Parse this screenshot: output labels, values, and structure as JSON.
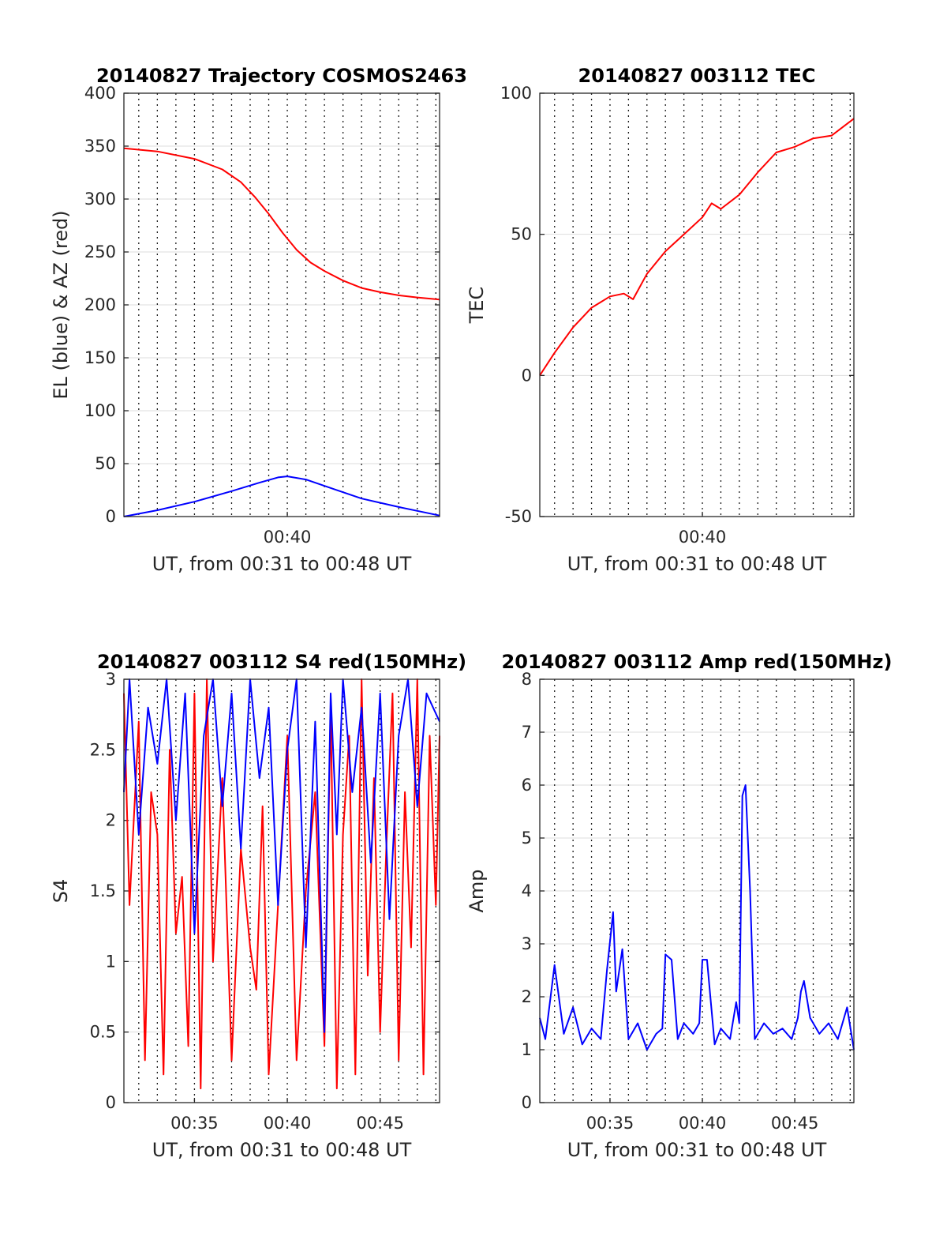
{
  "chart_data": [
    {
      "type": "line",
      "title": "20140827 Trajectory COSMOS2463",
      "xlabel": "UT, from 00:31 to 00:48 UT",
      "ylabel": "EL (blue) & AZ (red)",
      "xlim": [
        "00:31:12",
        "00:48:12"
      ],
      "ylim": [
        0,
        400
      ],
      "yticks": [
        0,
        50,
        100,
        150,
        200,
        250,
        300,
        350,
        400
      ],
      "xtick_labels": [
        {
          "t": "00:40",
          "label": "00:40"
        }
      ],
      "grid": true,
      "series": [
        {
          "color": "#ff0000",
          "x": [
            "00:31:12",
            "00:33:00",
            "00:35:00",
            "00:36:30",
            "00:37:30",
            "00:38:15",
            "00:39:00",
            "00:39:45",
            "00:40:30",
            "00:41:15",
            "00:42:00",
            "00:43:00",
            "00:44:00",
            "00:45:00",
            "00:46:00",
            "00:47:00",
            "00:48:12"
          ],
          "y": [
            348,
            345,
            338,
            328,
            316,
            302,
            286,
            268,
            252,
            240,
            232,
            223,
            216,
            212,
            209,
            207,
            205
          ]
        },
        {
          "color": "#0000ff",
          "x": [
            "00:31:12",
            "00:33:00",
            "00:35:00",
            "00:37:00",
            "00:38:30",
            "00:39:30",
            "00:40:00",
            "00:41:00",
            "00:42:30",
            "00:44:00",
            "00:46:00",
            "00:48:12"
          ],
          "y": [
            0,
            6,
            14,
            24,
            32,
            37,
            38,
            35,
            26,
            17,
            9,
            1
          ]
        }
      ]
    },
    {
      "type": "line",
      "title": "20140827 003112 TEC",
      "xlabel": "UT, from 00:31 to 00:48 UT",
      "ylabel": "TEC",
      "xlim": [
        "00:31:12",
        "00:48:12"
      ],
      "ylim": [
        -50,
        100
      ],
      "yticks": [
        -50,
        0,
        50,
        100
      ],
      "xtick_labels": [
        {
          "t": "00:40",
          "label": "00:40"
        }
      ],
      "grid": true,
      "series": [
        {
          "color": "#ff0000",
          "x": [
            "00:31:12",
            "00:32:00",
            "00:33:00",
            "00:34:00",
            "00:35:00",
            "00:35:45",
            "00:36:15",
            "00:37:00",
            "00:38:00",
            "00:39:00",
            "00:40:00",
            "00:40:30",
            "00:41:00",
            "00:42:00",
            "00:43:00",
            "00:44:00",
            "00:45:00",
            "00:46:00",
            "00:47:00",
            "00:48:12"
          ],
          "y": [
            0,
            8,
            17,
            24,
            28,
            29,
            27,
            36,
            44,
            50,
            56,
            61,
            59,
            64,
            72,
            79,
            81,
            84,
            85,
            91
          ]
        }
      ]
    },
    {
      "type": "line",
      "title": "20140827 003112 S4 red(150MHz)",
      "xlabel": "UT, from 00:31 to 00:48 UT",
      "ylabel": "S4",
      "xlim": [
        "00:31:12",
        "00:48:12"
      ],
      "ylim": [
        0,
        3
      ],
      "yticks": [
        0,
        0.5,
        1,
        1.5,
        2,
        2.5,
        3
      ],
      "xtick_labels": [
        {
          "t": "00:35",
          "label": "00:35"
        },
        {
          "t": "00:40",
          "label": "00:40"
        },
        {
          "t": "00:45",
          "label": "00:45"
        }
      ],
      "grid": true,
      "series": [
        {
          "color": "#ff0000",
          "x": [
            "00:31:12",
            "00:31:30",
            "00:32:00",
            "00:32:20",
            "00:32:40",
            "00:33:00",
            "00:33:20",
            "00:33:40",
            "00:34:00",
            "00:34:20",
            "00:34:40",
            "00:35:00",
            "00:35:20",
            "00:35:40",
            "00:36:00",
            "00:36:30",
            "00:37:00",
            "00:37:30",
            "00:38:00",
            "00:38:20",
            "00:38:40",
            "00:39:00",
            "00:39:30",
            "00:40:00",
            "00:40:30",
            "00:41:00",
            "00:41:30",
            "00:42:00",
            "00:42:20",
            "00:42:40",
            "00:43:00",
            "00:43:20",
            "00:43:40",
            "00:44:00",
            "00:44:20",
            "00:44:40",
            "00:45:00",
            "00:45:20",
            "00:45:40",
            "00:46:00",
            "00:46:20",
            "00:46:40",
            "00:47:00",
            "00:47:20",
            "00:47:40",
            "00:48:00",
            "00:48:12"
          ],
          "y": [
            2.9,
            1.4,
            2.7,
            0.3,
            2.2,
            1.9,
            0.2,
            2.5,
            1.2,
            1.6,
            0.4,
            2.9,
            0.1,
            3.0,
            1.0,
            2.3,
            0.3,
            1.8,
            1.1,
            0.8,
            2.1,
            0.2,
            1.4,
            2.6,
            0.3,
            1.5,
            2.2,
            0.4,
            2.8,
            0.1,
            1.9,
            2.6,
            0.2,
            3.0,
            0.9,
            2.3,
            0.5,
            1.8,
            2.9,
            0.3,
            2.2,
            1.1,
            3.0,
            0.2,
            2.6,
            1.4,
            2.6
          ]
        },
        {
          "color": "#0000ff",
          "x": [
            "00:31:12",
            "00:31:30",
            "00:32:00",
            "00:32:30",
            "00:33:00",
            "00:33:30",
            "00:34:00",
            "00:34:30",
            "00:35:00",
            "00:35:30",
            "00:36:00",
            "00:36:30",
            "00:37:00",
            "00:37:30",
            "00:38:00",
            "00:38:30",
            "00:39:00",
            "00:39:30",
            "00:40:00",
            "00:40:30",
            "00:41:00",
            "00:41:30",
            "00:42:00",
            "00:42:20",
            "00:42:40",
            "00:43:00",
            "00:43:30",
            "00:44:00",
            "00:44:30",
            "00:45:00",
            "00:45:30",
            "00:46:00",
            "00:46:30",
            "00:47:00",
            "00:47:30",
            "00:48:12"
          ],
          "y": [
            2.2,
            3.0,
            1.9,
            2.8,
            2.4,
            3.0,
            2.0,
            2.9,
            1.2,
            2.6,
            3.0,
            2.1,
            2.9,
            1.8,
            3.0,
            2.3,
            2.8,
            1.4,
            2.5,
            3.0,
            1.1,
            2.7,
            0.5,
            2.9,
            1.9,
            3.0,
            2.2,
            2.8,
            1.7,
            2.9,
            1.3,
            2.6,
            3.0,
            2.1,
            2.9,
            2.7
          ]
        }
      ]
    },
    {
      "type": "line",
      "title": "20140827 003112 Amp red(150MHz)",
      "xlabel": "UT, from 00:31 to 00:48 UT",
      "ylabel": "Amp",
      "xlim": [
        "00:31:12",
        "00:48:12"
      ],
      "ylim": [
        0,
        8
      ],
      "yticks": [
        0,
        1,
        2,
        3,
        4,
        5,
        6,
        7,
        8
      ],
      "xtick_labels": [
        {
          "t": "00:35",
          "label": "00:35"
        },
        {
          "t": "00:40",
          "label": "00:40"
        },
        {
          "t": "00:45",
          "label": "00:45"
        }
      ],
      "grid": true,
      "series": [
        {
          "color": "#0000ff",
          "x": [
            "00:31:12",
            "00:31:30",
            "00:32:00",
            "00:32:30",
            "00:33:00",
            "00:33:30",
            "00:34:00",
            "00:34:30",
            "00:34:50",
            "00:35:10",
            "00:35:20",
            "00:35:40",
            "00:36:00",
            "00:36:30",
            "00:37:00",
            "00:37:30",
            "00:37:50",
            "00:38:00",
            "00:38:20",
            "00:38:40",
            "00:39:00",
            "00:39:30",
            "00:39:50",
            "00:40:00",
            "00:40:15",
            "00:40:40",
            "00:41:00",
            "00:41:30",
            "00:41:50",
            "00:42:00",
            "00:42:10",
            "00:42:20",
            "00:42:35",
            "00:42:50",
            "00:43:20",
            "00:43:50",
            "00:44:20",
            "00:44:50",
            "00:45:10",
            "00:45:20",
            "00:45:30",
            "00:45:50",
            "00:46:20",
            "00:46:50",
            "00:47:20",
            "00:47:50",
            "00:48:12"
          ],
          "y": [
            1.6,
            1.2,
            2.6,
            1.3,
            1.8,
            1.1,
            1.4,
            1.2,
            2.5,
            3.6,
            2.1,
            2.9,
            1.2,
            1.5,
            1.0,
            1.3,
            1.4,
            2.8,
            2.7,
            1.2,
            1.5,
            1.3,
            1.5,
            2.7,
            2.7,
            1.1,
            1.4,
            1.2,
            1.9,
            1.5,
            5.8,
            6.0,
            4.0,
            1.2,
            1.5,
            1.3,
            1.4,
            1.2,
            1.6,
            2.1,
            2.3,
            1.6,
            1.3,
            1.5,
            1.2,
            1.8,
            1.0
          ]
        }
      ]
    }
  ]
}
